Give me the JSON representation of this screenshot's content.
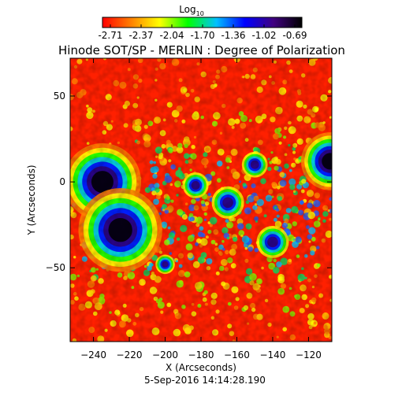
{
  "chart_data": {
    "type": "heatmap",
    "title": "Hinode SOT/SP - MERLIN : Degree of Polarization",
    "date": "5-Sep-2016 14:14:28.190",
    "xlabel": "X (Arcseconds)",
    "ylabel": "Y (Arcseconds)",
    "xlim": [
      -253,
      -107
    ],
    "ylim": [
      -93,
      72
    ],
    "x_ticks": [
      -240,
      -220,
      -200,
      -180,
      -160,
      -140,
      -120
    ],
    "y_ticks": [
      50,
      0,
      -50
    ],
    "colorbar": {
      "label_base": "Log",
      "label_sub": "10",
      "ticks": [
        "-2.71",
        "-2.37",
        "-2.04",
        "-1.70",
        "-1.36",
        "-1.02",
        "-0.69"
      ],
      "range": [
        -2.71,
        -0.69
      ],
      "colors": [
        "#ff0000",
        "#ff8000",
        "#ffff00",
        "#00ff00",
        "#00c0ff",
        "#0000ff",
        "#400080",
        "#000000"
      ]
    },
    "features": [
      {
        "name": "sunspot",
        "x": -235,
        "y": 0,
        "radius": 12,
        "log_value": -0.69
      },
      {
        "name": "sunspot",
        "x": -225,
        "y": -28,
        "radius": 13,
        "log_value": -0.69
      },
      {
        "name": "sunspot",
        "x": -108,
        "y": 12,
        "radius": 9,
        "log_value": -0.69
      },
      {
        "name": "pore",
        "x": -165,
        "y": -12,
        "radius": 5,
        "log_value": -1.02
      },
      {
        "name": "pore",
        "x": -183,
        "y": -2,
        "radius": 4,
        "log_value": -1.02
      },
      {
        "name": "pore",
        "x": -140,
        "y": -35,
        "radius": 5,
        "log_value": -1.02
      },
      {
        "name": "pore",
        "x": -200,
        "y": -48,
        "radius": 3,
        "log_value": -1.02
      },
      {
        "name": "pore",
        "x": -150,
        "y": 10,
        "radius": 4,
        "log_value": -1.02
      }
    ]
  }
}
